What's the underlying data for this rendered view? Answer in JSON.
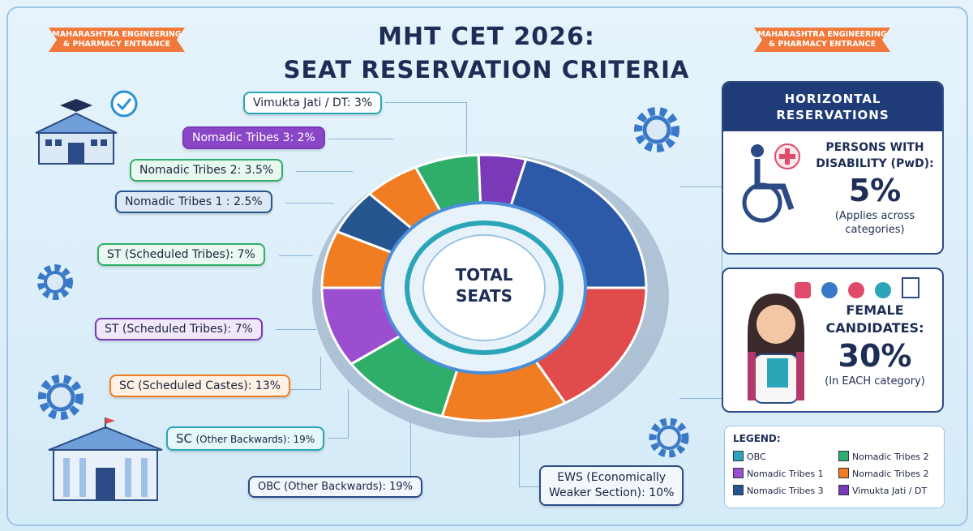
{
  "header": {
    "ribbon_left": "MAHARASHTRA ENGINEERING & PHARMACY ENTRANCE",
    "ribbon_right": "MAHARASHTRA ENGINEERING & PHARMACY ENTRANCE",
    "title_line1": "MHT CET 2026:",
    "title_line2": "SEAT RESERVATION CRITERIA"
  },
  "center": {
    "label_line1": "TOTAL",
    "label_line2": "SEATS"
  },
  "labels": {
    "vj": "Vimukta Jati / DT: 3%",
    "nt3": "Nomadic Tribes 3: 2%",
    "nt2": "Nomadic Tribes 2: 3.5%",
    "nt1": "Nomadic Tribes 1 : 2.5%",
    "st1": "ST (Scheduled Tribes): 7%",
    "st2": "ST (Scheduled Tribes): 7%",
    "sc": "SC (Scheduled Castes): 13%",
    "sc_obc_main": "SC",
    "sc_obc_sub": "(Other Backwards): 19%",
    "obc": "OBC (Other Backwards): 19%",
    "ews_line1": "EWS (Economically",
    "ews_line2": "Weaker Section): 10%"
  },
  "horizontal": {
    "heading_line1": "HORIZONTAL",
    "heading_line2": "RESERVATIONS",
    "pwd_line1": "PERSONS WITH",
    "pwd_line2": "DISABILITY (PwD):",
    "pwd_value": "5%",
    "pwd_note_line1": "(Applies across",
    "pwd_note_line2": "categories)",
    "female_line1": "FEMALE",
    "female_line2": "CANDIDATES:",
    "female_value": "30%",
    "female_note": "(In EACH category)"
  },
  "legend": {
    "title": "LEGEND:",
    "items": [
      {
        "label": "OBC",
        "color": "#2aa6b8"
      },
      {
        "label": "Nomadic Tribes 1",
        "color": "#9b4fd0"
      },
      {
        "label": "Nomadic Tribes 3",
        "color": "#24558f"
      },
      {
        "label": "Nomadic Tribes 2",
        "color": "#2fae6a"
      },
      {
        "label": "Nomadic Tribes 2",
        "color": "#f07d22"
      },
      {
        "label": "Vimukta Jati / DT",
        "color": "#7a3ab8"
      }
    ]
  },
  "colors": {
    "navy": "#1f3c78",
    "orange": "#f0783a",
    "teal": "#2aa6b8",
    "purple": "#7a3ab8",
    "green": "#2fae6a",
    "blue": "#2d5aa8"
  },
  "icons": [
    "graduation-school-icon",
    "check-badge-icon",
    "gear-icon",
    "wheelchair-icon",
    "medical-cross-icon",
    "university-building-icon",
    "female-student-icon"
  ]
}
